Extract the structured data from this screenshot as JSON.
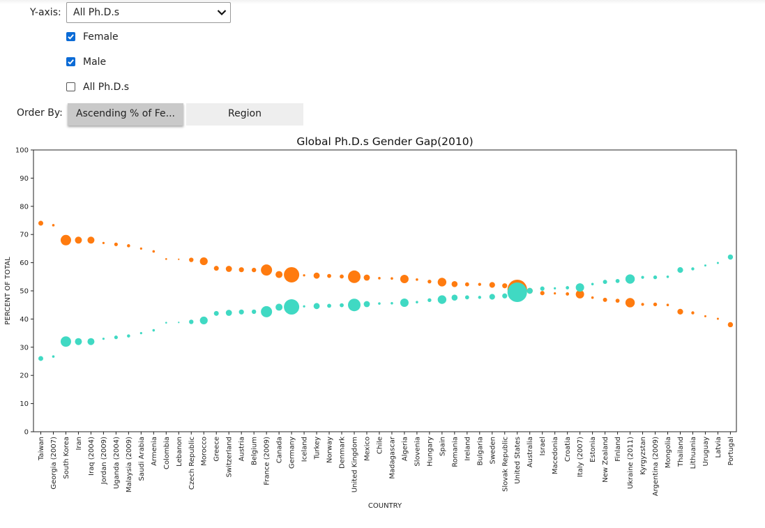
{
  "controls": {
    "yaxis_label": "Y-axis:",
    "yaxis_value": "All Ph.D.s",
    "checkboxes": [
      {
        "label": "Female",
        "checked": true
      },
      {
        "label": "Male",
        "checked": true
      },
      {
        "label": "All Ph.D.s",
        "checked": false
      }
    ],
    "order_by_label": "Order By:",
    "order_options": [
      {
        "label": "Ascending % of Fe...",
        "active": true
      },
      {
        "label": "Region",
        "active": false
      }
    ]
  },
  "chart_data": {
    "type": "scatter",
    "title": "Global Ph.D.s Gender Gap(2010)",
    "xlabel": "COUNTRY",
    "ylabel": "PERCENT OF TOTAL",
    "ylim": [
      0,
      100
    ],
    "yticks": [
      0,
      10,
      20,
      30,
      40,
      50,
      60,
      70,
      80,
      90,
      100
    ],
    "categories": [
      "Taiwan",
      "Georgia (2007)",
      "South Korea",
      "Iran",
      "Iraq (2004)",
      "Jordan (2009)",
      "Uganda (2004)",
      "Malaysia (2009)",
      "Saudi Arabia",
      "Armenia",
      "Colombia",
      "Lebanon",
      "Czech Republic",
      "Morocco",
      "Greece",
      "Switzerland",
      "Austria",
      "Belgium",
      "France (2009)",
      "Canada",
      "Germany",
      "Iceland",
      "Turkey",
      "Norway",
      "Denmark",
      "United Kingdom",
      "Mexico",
      "Chile",
      "Madagascar",
      "Algeria",
      "Slovenia",
      "Hungary",
      "Spain",
      "Romania",
      "Ireland",
      "Bulgaria",
      "Sweden",
      "Slovak Republic",
      "United States",
      "Australia",
      "Israel",
      "Macedonia",
      "Croatia",
      "Italy (2007)",
      "Estonia",
      "New Zealand",
      "Finland",
      "Ukraine (2011)",
      "Kyrgyzstan",
      "Argentina (2009)",
      "Mongolia",
      "Thailand",
      "Lithuania",
      "Uruguay",
      "Latvia",
      "Portugal"
    ],
    "series": [
      {
        "name": "Female",
        "color": "#40d9c3",
        "values": [
          26,
          26.7,
          32,
          32,
          32,
          33,
          33.5,
          34,
          35,
          36,
          38.7,
          38.8,
          39,
          39.5,
          42,
          42.2,
          42.5,
          42.6,
          42.6,
          44.2,
          44.3,
          44.5,
          44.6,
          44.7,
          44.9,
          45,
          45.3,
          45.5,
          45.6,
          45.8,
          46,
          46.7,
          46.9,
          47.6,
          47.7,
          47.7,
          47.9,
          48.2,
          49.5,
          50,
          50.8,
          50.9,
          51.1,
          51.2,
          52.4,
          53.2,
          53.5,
          54.2,
          54.8,
          54.8,
          55,
          57.4,
          57.8,
          59,
          59.9,
          62
        ]
      },
      {
        "name": "Male",
        "color": "#ff7b0f",
        "values": [
          74,
          73.3,
          68,
          68,
          68,
          67,
          66.5,
          66,
          65,
          64,
          61.3,
          61.2,
          61,
          60.5,
          58,
          57.8,
          57.5,
          57.4,
          57.4,
          55.8,
          55.7,
          55.5,
          55.4,
          55.3,
          55.1,
          55,
          54.7,
          54.5,
          54.4,
          54.2,
          54,
          53.3,
          53.1,
          52.4,
          52.3,
          52.3,
          52.1,
          51.8,
          50.5,
          50,
          49.2,
          49.1,
          48.9,
          48.8,
          47.6,
          46.8,
          46.5,
          45.8,
          45.2,
          45.2,
          45,
          42.6,
          42.2,
          41,
          40.1,
          38
        ]
      }
    ],
    "sizes": [
      3.5,
      1.8,
      7.5,
      5,
      5,
      1.6,
      2.6,
      2.3,
      1.6,
      1.8,
      1.3,
      1.1,
      3.2,
      5.6,
      3.5,
      4.4,
      3.6,
      3.2,
      8,
      5,
      11,
      1.6,
      4.4,
      2.9,
      2.9,
      9,
      4.4,
      1.8,
      1.8,
      6,
      1.8,
      2.7,
      6.2,
      4.3,
      2.9,
      2.2,
      4.1,
      3.6,
      14,
      4.2,
      3.1,
      1.6,
      2.4,
      6,
      1.8,
      3,
      2.9,
      6.7,
      2.1,
      2.7,
      1.8,
      4.1,
      2.2,
      1.5,
      1.5,
      3.7
    ]
  }
}
